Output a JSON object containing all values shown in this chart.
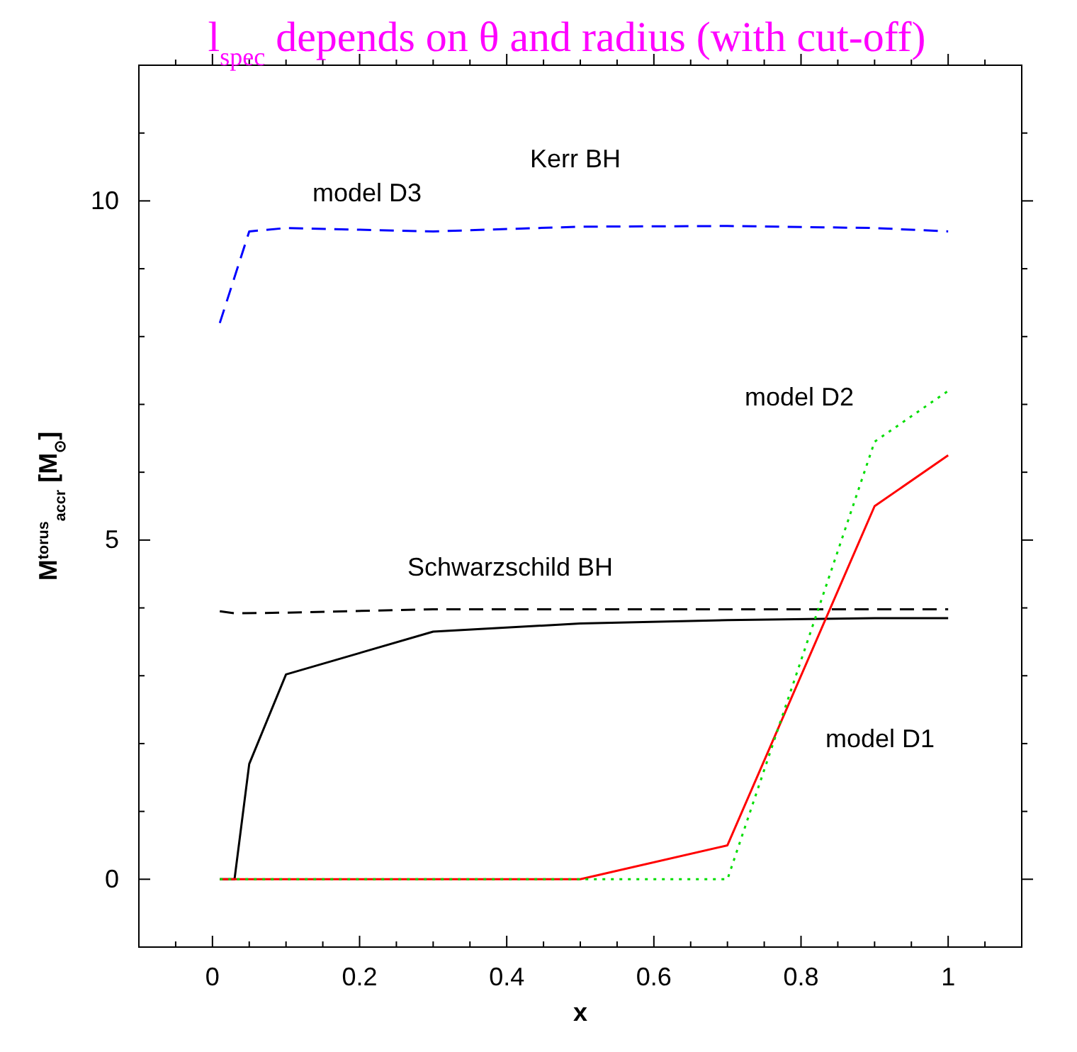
{
  "chart_data": {
    "type": "line",
    "title": "l$_{spec}$ depends on θ and radius (with cut-off)",
    "xlabel": "x",
    "ylabel": "M$^{torus}$$_{accr}$ [M$_{⊙}$]",
    "xlim": [
      -0.1,
      1.1
    ],
    "ylim": [
      -1,
      12
    ],
    "xticks": [
      {
        "value": -0.05,
        "label": null
      },
      0,
      {
        "value": 0.05,
        "label": null
      },
      {
        "value": 0.1,
        "label": null
      },
      {
        "value": 0.15,
        "label": null
      },
      0.2,
      {
        "value": 0.25,
        "label": null
      },
      {
        "value": 0.3,
        "label": null
      },
      {
        "value": 0.35,
        "label": null
      },
      0.4,
      {
        "value": 0.45,
        "label": null
      },
      {
        "value": 0.5,
        "label": null
      },
      {
        "value": 0.55,
        "label": null
      },
      0.6,
      {
        "value": 0.65,
        "label": null
      },
      {
        "value": 0.7,
        "label": null
      },
      {
        "value": 0.75,
        "label": null
      },
      0.8,
      {
        "value": 0.85,
        "label": null
      },
      {
        "value": 0.9,
        "label": null
      },
      {
        "value": 0.95,
        "label": null
      },
      1,
      {
        "value": 1.05,
        "label": null
      }
    ],
    "yticks": [
      0,
      {
        "value": 1,
        "label": null
      },
      {
        "value": 2,
        "label": null
      },
      {
        "value": 3,
        "label": null
      },
      {
        "value": 4,
        "label": null
      },
      5,
      {
        "value": 6,
        "label": null
      },
      {
        "value": 7,
        "label": null
      },
      {
        "value": 8,
        "label": null
      },
      {
        "value": 9,
        "label": null
      },
      10,
      {
        "value": 11,
        "label": null
      }
    ],
    "grid": false,
    "marker": "none",
    "series": [
      {
        "color": "#0000ff",
        "line_style": "dashed",
        "x": [
          0.01,
          0.05,
          0.1,
          0.3,
          0.5,
          0.7,
          0.9,
          1.0
        ],
        "values": [
          8.2,
          9.55,
          9.6,
          9.55,
          9.62,
          9.63,
          9.6,
          9.55
        ]
      },
      {
        "color": "#000000",
        "line_style": "dashed",
        "x": [
          0.01,
          0.03,
          0.1,
          0.3,
          0.5,
          0.7,
          0.9,
          1.0
        ],
        "values": [
          3.95,
          3.92,
          3.93,
          3.98,
          3.98,
          3.98,
          3.98,
          3.98
        ]
      },
      {
        "color": "#000000",
        "line_style": "solid",
        "x": [
          0.01,
          0.03,
          0.05,
          0.1,
          0.3,
          0.5,
          0.7,
          0.9,
          1.0
        ],
        "values": [
          0,
          0,
          1.7,
          3.02,
          3.65,
          3.77,
          3.82,
          3.85,
          3.85
        ]
      },
      {
        "color": "#ff0000",
        "line_style": "solid",
        "x": [
          0.01,
          0.5,
          0.7,
          0.9,
          1.0
        ],
        "values": [
          0,
          0,
          0.5,
          5.5,
          6.25
        ]
      },
      {
        "color": "#00dd00",
        "line_style": "dotted",
        "x": [
          0.01,
          0.7,
          0.9,
          1.0
        ],
        "values": [
          0,
          0,
          6.45,
          7.2
        ]
      }
    ],
    "annotations": [
      "Kerr BH",
      "model D3",
      "model D2",
      "Schwarzschild BH",
      "model D1"
    ]
  }
}
